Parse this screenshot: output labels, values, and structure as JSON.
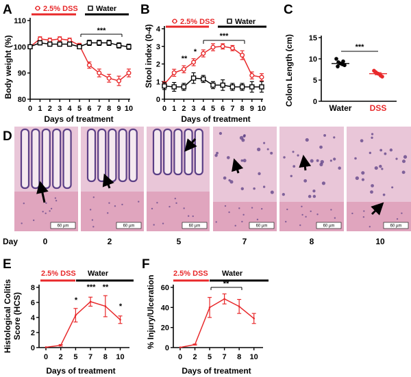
{
  "colors": {
    "dss": "#e8282a",
    "water": "#000000",
    "tissue_bg": "#e9c6d8",
    "tissue_nuclei": "#5b3f86",
    "tissue_muscle": "#d98aa9"
  },
  "panels": {
    "A": {
      "label": "A",
      "ylabel": "Body weight (%)",
      "xlabel": "Days of treatment",
      "bar_dss": "2.5% DSS",
      "bar_water": "Water",
      "sig": "***"
    },
    "B": {
      "label": "B",
      "ylabel": "Stool index (0-4)",
      "xlabel": "Days of treatment",
      "bar_dss": "2.5% DSS",
      "bar_water": "Water",
      "sig": "***",
      "stars": [
        "**",
        "*"
      ]
    },
    "C": {
      "label": "C",
      "ylabel": "Colon Length (cm)",
      "sig": "***"
    },
    "D": {
      "label": "D",
      "day_caption": "Day",
      "scale_text": "60 µm",
      "days": [
        "0",
        "2",
        "5",
        "7",
        "8",
        "10"
      ]
    },
    "E": {
      "label": "E",
      "ylabel_line1": "Histological Colitis",
      "ylabel_line2": "Score (HCS)",
      "xlabel": "Days of treatment",
      "bar_dss": "2.5% DSS",
      "bar_water": "Water",
      "stars": [
        "*",
        "***",
        "**",
        "*"
      ]
    },
    "F": {
      "label": "F",
      "ylabel": "% Injury/Ulceration",
      "xlabel": "Days of treatment",
      "bar_dss": "2.5% DSS",
      "bar_water": "Water",
      "sig": "**"
    }
  },
  "chart_data": [
    {
      "id": "A",
      "type": "line",
      "xlabel": "Days of treatment",
      "ylabel": "Body weight (%)",
      "xlim": [
        0,
        10
      ],
      "ylim": [
        80,
        110
      ],
      "xticks": [
        0,
        1,
        2,
        3,
        4,
        5,
        6,
        7,
        8,
        9,
        10
      ],
      "yticks": [
        80,
        90,
        100,
        110
      ],
      "series": [
        {
          "name": "2.5% DSS",
          "color": "#e8282a",
          "marker": "circle",
          "x": [
            0,
            1,
            2,
            3,
            4,
            5,
            6,
            7,
            8,
            9,
            10
          ],
          "y": [
            100,
            103,
            102.5,
            103,
            102.5,
            100.5,
            93,
            90,
            88,
            87,
            90
          ],
          "err": [
            0.5,
            0.8,
            0.8,
            0.8,
            0.8,
            0.8,
            1.2,
            1.5,
            1.5,
            1.8,
            1.5
          ]
        },
        {
          "name": "Water",
          "color": "#000000",
          "marker": "square",
          "x": [
            0,
            1,
            2,
            3,
            4,
            5,
            6,
            7,
            8,
            9,
            10
          ],
          "y": [
            100,
            101.5,
            101,
            101,
            101,
            100,
            101.5,
            101.5,
            101.5,
            100.5,
            100
          ],
          "err": [
            0.5,
            0.8,
            0.8,
            0.8,
            0.8,
            0.8,
            1.0,
            1.0,
            1.0,
            1.0,
            1.0
          ]
        }
      ]
    },
    {
      "id": "B",
      "type": "line",
      "xlabel": "Days of treatment",
      "ylabel": "Stool index (0-4)",
      "xlim": [
        0,
        10
      ],
      "ylim": [
        0,
        4
      ],
      "xticks": [
        0,
        1,
        2,
        3,
        4,
        5,
        6,
        7,
        8,
        9,
        10
      ],
      "yticks": [
        0,
        1,
        2,
        3,
        4
      ],
      "series": [
        {
          "name": "2.5% DSS",
          "color": "#e8282a",
          "marker": "circle",
          "x": [
            0,
            1,
            2,
            3,
            4,
            5,
            6,
            7,
            8,
            9,
            10
          ],
          "y": [
            0.85,
            1.5,
            1.7,
            2.1,
            2.6,
            2.95,
            3.0,
            2.9,
            2.5,
            1.35,
            1.25
          ],
          "err": [
            0.15,
            0.2,
            0.2,
            0.2,
            0.2,
            0.2,
            0.15,
            0.15,
            0.25,
            0.2,
            0.2
          ]
        },
        {
          "name": "Water",
          "color": "#000000",
          "marker": "square",
          "x": [
            0,
            1,
            2,
            3,
            4,
            5,
            6,
            7,
            8,
            9,
            10
          ],
          "y": [
            0.75,
            0.7,
            0.7,
            1.2,
            1.15,
            0.8,
            0.8,
            0.7,
            0.7,
            0.7,
            0.7
          ],
          "err": [
            0.2,
            0.25,
            0.2,
            0.3,
            0.2,
            0.2,
            0.3,
            0.2,
            0.2,
            0.3,
            0.3
          ]
        }
      ]
    },
    {
      "id": "C",
      "type": "scatter",
      "ylabel": "Colon Length (cm)",
      "categories": [
        "Water",
        "DSS"
      ],
      "ylim": [
        0,
        15
      ],
      "yticks": [
        0,
        5,
        10,
        15
      ],
      "series": [
        {
          "name": "Water",
          "color": "#000000",
          "values": [
            10.0,
            9.2,
            8.9,
            8.7,
            8.5,
            8.2,
            9.4
          ],
          "mean": 8.9,
          "sem": 0.3
        },
        {
          "name": "DSS",
          "color": "#e8282a",
          "values": [
            7.2,
            6.8,
            6.5,
            6.2,
            5.8,
            6.9,
            6.0
          ],
          "mean": 6.5,
          "sem": 0.25
        }
      ]
    },
    {
      "id": "E",
      "type": "line",
      "xlabel": "Days of treatment",
      "ylabel": "Histological Colitis Score (HCS)",
      "categories": [
        "0",
        "2",
        "5",
        "7",
        "8",
        "10"
      ],
      "ylim": [
        0,
        8
      ],
      "yticks": [
        0,
        2,
        4,
        6,
        8
      ],
      "series": [
        {
          "name": "HCS",
          "color": "#e8282a",
          "marker": "none",
          "values": [
            0.05,
            0.3,
            4.3,
            6.1,
            5.5,
            3.7
          ],
          "err": [
            0.0,
            0.1,
            0.9,
            0.6,
            1.4,
            0.5
          ]
        }
      ]
    },
    {
      "id": "F",
      "type": "line",
      "xlabel": "Days of treatment",
      "ylabel": "% Injury/Ulceration",
      "categories": [
        "0",
        "2",
        "5",
        "7",
        "8",
        "10"
      ],
      "ylim": [
        0,
        60
      ],
      "yticks": [
        0,
        20,
        40,
        60
      ],
      "series": [
        {
          "name": "% Injury/Ulceration",
          "color": "#e8282a",
          "marker": "none",
          "values": [
            0.2,
            3,
            40,
            48.5,
            41,
            29
          ],
          "err": [
            0.0,
            0.5,
            10,
            5,
            7,
            5
          ]
        }
      ]
    }
  ]
}
